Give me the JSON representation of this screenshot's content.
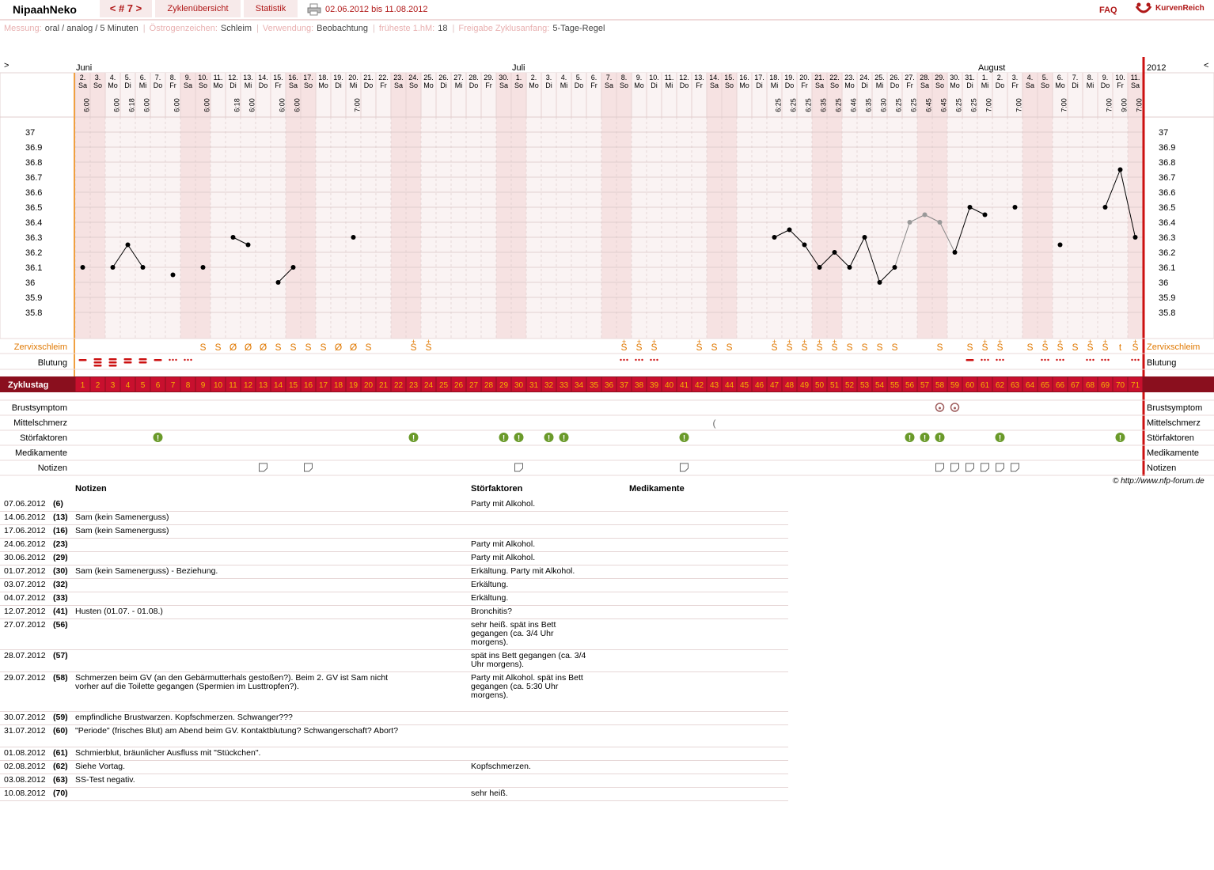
{
  "header": {
    "brand": "NipaahNeko",
    "cycle_label": "< # 7 >",
    "tab_overview": "Zyklenübersicht",
    "tab_stats": "Statistik",
    "date_range": "02.06.2012 bis 11.08.2012",
    "faq": "FAQ",
    "logo_text": "KurvenReich"
  },
  "settings": {
    "messung_label": "Messung:",
    "messung_value": "oral / analog / 5 Minuten",
    "oestrogen_label": "Östrogenzeichen:",
    "oestrogen_value": "Schleim",
    "verwendung_label": "Verwendung:",
    "verwendung_value": "Beobachtung",
    "hm_label": "früheste 1.hM:",
    "hm_value": "18",
    "freigabe_label": "Freigabe Zyklusanfang:",
    "freigabe_value": "5-Tage-Regel"
  },
  "chart_data": {
    "type": "line",
    "title": "",
    "xlabel": "Zyklustag",
    "ylabel": "",
    "ylim": [
      35.7,
      37.05
    ],
    "y_ticks": [
      "37",
      "36.9",
      "36.8",
      "36.7",
      "36.6",
      "36.5",
      "36.4",
      "36.3",
      "36.2",
      "36.1",
      "36",
      "35.9",
      "35.8"
    ],
    "grid": true,
    "nav_left": ">",
    "nav_right": "<",
    "year": "2012",
    "months": [
      {
        "name": "Juni",
        "day": 1
      },
      {
        "name": "Juli",
        "day": 30
      },
      {
        "name": "August",
        "day": 61
      }
    ],
    "dates": [
      "2.",
      "3.",
      "4.",
      "5.",
      "6.",
      "7.",
      "8.",
      "9.",
      "10.",
      "11.",
      "12.",
      "13.",
      "14.",
      "15.",
      "16.",
      "17.",
      "18.",
      "19.",
      "20.",
      "21.",
      "22.",
      "23.",
      "24.",
      "25.",
      "26.",
      "27.",
      "28.",
      "29.",
      "30.",
      "1.",
      "2.",
      "3.",
      "4.",
      "5.",
      "6.",
      "7.",
      "8.",
      "9.",
      "10.",
      "11.",
      "12.",
      "13.",
      "14.",
      "15.",
      "16.",
      "17.",
      "18.",
      "19.",
      "20.",
      "21.",
      "22.",
      "23.",
      "24.",
      "25.",
      "26.",
      "27.",
      "28.",
      "29.",
      "30.",
      "31.",
      "1.",
      "2.",
      "3.",
      "4.",
      "5.",
      "6.",
      "7.",
      "8.",
      "9.",
      "10.",
      "11."
    ],
    "weekdays": [
      "Sa",
      "So",
      "Mo",
      "Di",
      "Mi",
      "Do",
      "Fr",
      "Sa",
      "So",
      "Mo",
      "Di",
      "Mi",
      "Do",
      "Fr",
      "Sa",
      "So",
      "Mo",
      "Di",
      "Mi",
      "Do",
      "Fr",
      "Sa",
      "So",
      "Mo",
      "Di",
      "Mi",
      "Do",
      "Fr",
      "Sa",
      "So",
      "Mo",
      "Di",
      "Mi",
      "Do",
      "Fr",
      "Sa",
      "So",
      "Mo",
      "Di",
      "Mi",
      "Do",
      "Fr",
      "Sa",
      "So",
      "Mo",
      "Di",
      "Mi",
      "Do",
      "Fr",
      "Sa",
      "So",
      "Mo",
      "Di",
      "Mi",
      "Do",
      "Fr",
      "Sa",
      "So",
      "Mo",
      "Di",
      "Mi",
      "Do",
      "Fr",
      "Sa",
      "So",
      "Mo",
      "Di",
      "Mi",
      "Do",
      "Fr",
      "Sa"
    ],
    "times": [
      "6:00",
      "",
      "6:00",
      "6:18",
      "6:00",
      "",
      "6:00",
      "",
      "6:00",
      "",
      "6:18",
      "6:00",
      "",
      "6:00",
      "6:00",
      "",
      "",
      "",
      "7:00",
      "",
      "",
      "",
      "",
      "",
      "",
      "",
      "",
      "",
      "",
      "",
      "",
      "",
      "",
      "",
      "",
      "",
      "",
      "",
      "",
      "",
      "",
      "",
      "",
      "",
      "",
      "",
      "6:25",
      "6:25",
      "6:25",
      "6:35",
      "6:25",
      "6:46",
      "6:35",
      "6:30",
      "6:25",
      "6:25",
      "6:45",
      "6:45",
      "6:25",
      "6:25",
      "7:00",
      "",
      "7:00",
      "",
      "",
      "7:00",
      "",
      "",
      "7:00",
      "9:00",
      "7:00"
    ],
    "series": [
      {
        "values": [
          36.1,
          null,
          36.1,
          36.25,
          36.1,
          null,
          36.05,
          null,
          36.1,
          null,
          36.3,
          36.25,
          null,
          36.0,
          36.1,
          null,
          null,
          null,
          36.3,
          null,
          null,
          null,
          null,
          null,
          null,
          null,
          null,
          null,
          null,
          null,
          null,
          null,
          null,
          null,
          null,
          null,
          null,
          null,
          null,
          null,
          null,
          null,
          null,
          null,
          null,
          null,
          36.3,
          36.35,
          36.25,
          36.1,
          36.2,
          36.1,
          36.3,
          36.0,
          36.1,
          36.4,
          36.45,
          36.4,
          36.2,
          36.5,
          36.45,
          null,
          36.5,
          null,
          null,
          36.25,
          null,
          null,
          36.5,
          36.75,
          36.3
        ],
        "grey_days": [
          56,
          57,
          58
        ]
      }
    ],
    "cervix_label": "Zervixschleim",
    "cervix": [
      "",
      "",
      "",
      "",
      "",
      "",
      "",
      "",
      "S",
      "S",
      "Ø",
      "Ø",
      "Ø",
      "S",
      "S",
      "S",
      "S",
      "Ø",
      "Ø",
      "S",
      "",
      "",
      "S+",
      "S+",
      "",
      "",
      "",
      "",
      "",
      "",
      "",
      "",
      "",
      "",
      "",
      "",
      "S+",
      "S+",
      "S+",
      "",
      "",
      "S+",
      "S",
      "S",
      "",
      "",
      "S+",
      "S+",
      "S+",
      "S+",
      "S+",
      "S",
      "S",
      "S",
      "S",
      "",
      "",
      "S",
      "",
      "S",
      "S+",
      "S+",
      "",
      "S",
      "S+",
      "S+",
      "S",
      "S+",
      "S+",
      "t",
      "S+"
    ],
    "bleeding_label": "Blutung",
    "bleeding": [
      "dash",
      "heavy",
      "heavy",
      "med",
      "med",
      "dash",
      "dots",
      "dots",
      "",
      "",
      "",
      "",
      "",
      "",
      "",
      "",
      "",
      "",
      "",
      "",
      "",
      "",
      "",
      "",
      "",
      "",
      "",
      "",
      "",
      "",
      "",
      "",
      "",
      "",
      "",
      "",
      "dots",
      "dots",
      "dots",
      "",
      "",
      "",
      "",
      "",
      "",
      "",
      "",
      "",
      "",
      "",
      "",
      "",
      "",
      "",
      "",
      "",
      "",
      "",
      "",
      "dash",
      "dots",
      "dots",
      "",
      "",
      "dots",
      "dots",
      "",
      "dots",
      "dots",
      "",
      "dots"
    ],
    "cycle_label": "Zyklustag",
    "cycle_days": [
      "1",
      "2",
      "3",
      "4",
      "5",
      "6",
      "7",
      "8",
      "9",
      "10",
      "11",
      "12",
      "13",
      "14",
      "15",
      "16",
      "17",
      "18",
      "19",
      "20",
      "21",
      "22",
      "23",
      "24",
      "25",
      "26",
      "27",
      "28",
      "29",
      "30",
      "31",
      "32",
      "33",
      "34",
      "35",
      "36",
      "37",
      "38",
      "39",
      "40",
      "41",
      "42",
      "43",
      "44",
      "45",
      "46",
      "47",
      "48",
      "49",
      "50",
      "51",
      "52",
      "53",
      "54",
      "55",
      "56",
      "57",
      "58",
      "59",
      "60",
      "61",
      "62",
      "63",
      "64",
      "65",
      "66",
      "67",
      "68",
      "69",
      "70",
      "71"
    ],
    "row_labels": {
      "brust": "Brustsymptom",
      "mittel": "Mittelschmerz",
      "stoer": "Störfaktoren",
      "medi": "Medikamente",
      "notiz": "Notizen"
    },
    "brust_days": [
      58,
      59
    ],
    "mittel_days": [
      43
    ],
    "stoer_days": [
      6,
      23,
      29,
      30,
      32,
      33,
      41,
      56,
      57,
      58,
      62,
      70
    ],
    "notiz_days": [
      13,
      16,
      30,
      41,
      58,
      59,
      60,
      61,
      62,
      63
    ]
  },
  "notes_table": {
    "headers": {
      "notes": "Notizen",
      "stoer": "Störfaktoren",
      "medi": "Medikamente"
    },
    "rows": [
      {
        "date": "07.06.2012",
        "day": "(6)",
        "note": "",
        "stoer": "Party mit Alkohol."
      },
      {
        "date": "14.06.2012",
        "day": "(13)",
        "note": "Sam (kein Samenerguss)",
        "stoer": ""
      },
      {
        "date": "17.06.2012",
        "day": "(16)",
        "note": "Sam (kein Samenerguss)",
        "stoer": ""
      },
      {
        "date": "24.06.2012",
        "day": "(23)",
        "note": "",
        "stoer": "Party mit Alkohol."
      },
      {
        "date": "30.06.2012",
        "day": "(29)",
        "note": "",
        "stoer": "Party mit Alkohol."
      },
      {
        "date": "01.07.2012",
        "day": "(30)",
        "note": "Sam (kein Samenerguss) - Beziehung.",
        "stoer": "Erkältung. Party mit Alkohol."
      },
      {
        "date": "03.07.2012",
        "day": "(32)",
        "note": "",
        "stoer": "Erkältung."
      },
      {
        "date": "04.07.2012",
        "day": "(33)",
        "note": "",
        "stoer": "Erkältung."
      },
      {
        "date": "12.07.2012",
        "day": "(41)",
        "note": "Husten (01.07. - 01.08.)",
        "stoer": "Bronchitis?"
      },
      {
        "date": "27.07.2012",
        "day": "(56)",
        "note": "",
        "stoer": "sehr heiß. spät ins Bett gegangen (ca. 3/4 Uhr morgens)."
      },
      {
        "date": "28.07.2012",
        "day": "(57)",
        "note": "",
        "stoer": "spät ins Bett gegangen (ca. 3/4 Uhr morgens)."
      },
      {
        "date": "29.07.2012",
        "day": "(58)",
        "note": "Schmerzen beim GV (an den Gebärmutterhals gestoßen?). Beim 2. GV ist Sam nicht vorher auf die Toilette gegangen (Spermien im Lusttropfen?).",
        "stoer": "Party mit Alkohol. spät ins Bett gegangen (ca. 5:30 Uhr morgens)."
      },
      {
        "date": "30.07.2012",
        "day": "(59)",
        "note": "empfindliche Brustwarzen. Kopfschmerzen. Schwanger???",
        "stoer": ""
      },
      {
        "date": "31.07.2012",
        "day": "(60)",
        "note": "\"Periode\" (frisches Blut) am Abend beim GV. Kontaktblutung? Schwangerschaft? Abort?",
        "stoer": ""
      },
      {
        "date": "01.08.2012",
        "day": "(61)",
        "note": "Schmierblut, bräunlicher Ausfluss mit \"Stückchen\".",
        "stoer": ""
      },
      {
        "date": "02.08.2012",
        "day": "(62)",
        "note": "Siehe Vortag.",
        "stoer": "Kopfschmerzen."
      },
      {
        "date": "03.08.2012",
        "day": "(63)",
        "note": "SS-Test negativ.",
        "stoer": ""
      },
      {
        "date": "10.08.2012",
        "day": "(70)",
        "note": "",
        "stoer": "sehr heiß."
      }
    ]
  },
  "footer": {
    "credit": "© http://www.nfp-forum.de"
  },
  "colors": {
    "accent": "#b01818",
    "orange": "#e07800",
    "band": "#8a0f1e",
    "weekend": "#f6e2e2",
    "plot_bg": "#faf3f3",
    "grid": "#d9c6c6"
  }
}
